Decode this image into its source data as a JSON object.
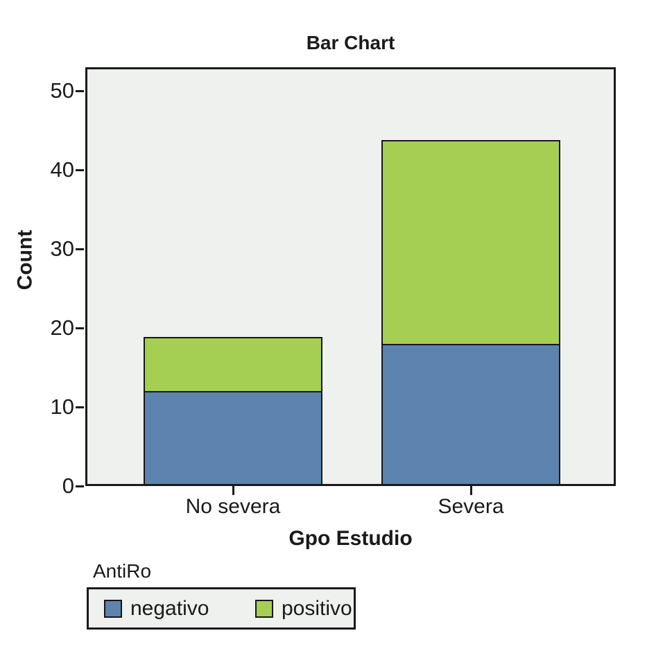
{
  "chart_data": {
    "type": "bar",
    "stacked": true,
    "title": "Bar Chart",
    "xlabel": "Gpo Estudio",
    "ylabel": "Count",
    "categories": [
      "No severa",
      "Severa"
    ],
    "series": [
      {
        "name": "negativo",
        "color": "#5c84af",
        "values": [
          12,
          18
        ]
      },
      {
        "name": "positivo",
        "color": "#a5cf52",
        "values": [
          7,
          26
        ]
      }
    ],
    "totals": [
      19,
      44
    ],
    "ylim": [
      0,
      53
    ],
    "yticks": [
      0,
      10,
      20,
      30,
      40,
      50
    ],
    "grid": false,
    "legend_title": "AntiRo",
    "legend_position": "bottom-left"
  },
  "colors": {
    "plot_background": "#eef1ee",
    "frame": "#1a1a1a",
    "page_background": "#ffffff",
    "series_negativo": "#5c84af",
    "series_positivo": "#a5cf52"
  }
}
